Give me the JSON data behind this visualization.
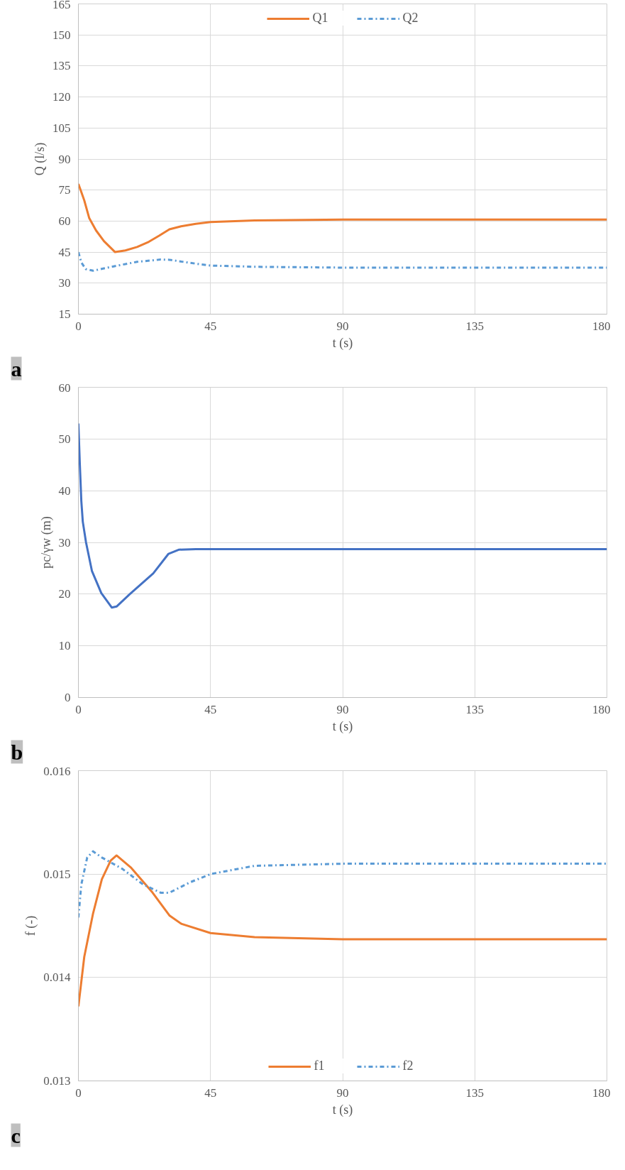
{
  "chart_data": [
    {
      "type": "line",
      "xlabel": "t (s)",
      "ylabel": "Q (l/s)",
      "xlim": [
        0,
        180
      ],
      "ylim": [
        15,
        165
      ],
      "xticks": [
        0,
        45,
        90,
        135,
        180
      ],
      "yticks": [
        15,
        30,
        45,
        60,
        75,
        90,
        105,
        120,
        135,
        150,
        165
      ],
      "grid": true,
      "legend": "top",
      "annotations": [
        "a"
      ],
      "series": [
        {
          "name": "Q1",
          "color": "#ed7d31",
          "line_style": "solid",
          "x": [
            0,
            1,
            2,
            3.7,
            6,
            8.7,
            12.5,
            16,
            20,
            24,
            27.6,
            31,
            35,
            40,
            45,
            60,
            90,
            135,
            180
          ],
          "values": [
            78,
            74,
            70,
            61.4,
            55.5,
            50.3,
            45,
            45.8,
            47.5,
            50,
            53,
            56,
            57.5,
            58.7,
            59.5,
            60.3,
            60.7,
            60.7,
            60.7
          ]
        },
        {
          "name": "Q2",
          "color": "#5b9bd5",
          "line_style": "dashdot",
          "x": [
            0,
            1,
            2.5,
            5,
            12,
            20,
            28,
            31,
            38,
            45,
            60,
            90,
            135,
            180
          ],
          "values": [
            45,
            40,
            36.8,
            36,
            38.1,
            40.3,
            41.4,
            41.3,
            39.8,
            38.5,
            37.9,
            37.5,
            37.5,
            37.5
          ]
        }
      ]
    },
    {
      "type": "line",
      "xlabel": "t (s)",
      "ylabel": "pc/γw (m)",
      "xlim": [
        0,
        180
      ],
      "ylim": [
        0,
        60
      ],
      "xticks": [
        0,
        45,
        90,
        135,
        180
      ],
      "yticks": [
        0,
        10,
        20,
        30,
        40,
        50,
        60
      ],
      "grid": true,
      "annotations": [
        "b"
      ],
      "series": [
        {
          "color": "#4472c4",
          "line_style": "solid",
          "x": [
            0,
            0.5,
            1,
            1.5,
            2.6,
            4.6,
            7.8,
            11.4,
            13,
            17.5,
            25.5,
            30.7,
            34.3,
            40,
            45,
            90,
            135,
            180
          ],
          "values": [
            53,
            45,
            38,
            34,
            30,
            24.5,
            20.2,
            17.4,
            17.6,
            20,
            24,
            27.8,
            28.6,
            28.7,
            28.7,
            28.7,
            28.7,
            28.7
          ]
        }
      ]
    },
    {
      "type": "line",
      "xlabel": "t (s)",
      "ylabel": "f (-)",
      "xlim": [
        0,
        180
      ],
      "ylim": [
        0.013,
        0.016
      ],
      "xticks": [
        0,
        45,
        90,
        135,
        180
      ],
      "yticks": [
        0.013,
        0.014,
        0.015,
        0.016
      ],
      "grid": true,
      "legend": "bottom",
      "annotations": [
        "c"
      ],
      "series": [
        {
          "name": "f1",
          "color": "#ed7d31",
          "line_style": "solid",
          "x": [
            0,
            2,
            5,
            8,
            11,
            13,
            18,
            25,
            31,
            35,
            45,
            60,
            90,
            135,
            180
          ],
          "values": [
            0.01372,
            0.0142,
            0.01462,
            0.01495,
            0.01513,
            0.01518,
            0.01506,
            0.01483,
            0.0146,
            0.01452,
            0.01443,
            0.01439,
            0.01437,
            0.01437,
            0.01437
          ]
        },
        {
          "name": "f2",
          "color": "#5b9bd5",
          "line_style": "dashdot",
          "x": [
            0,
            1,
            3,
            5,
            8,
            15,
            22,
            28,
            31,
            38,
            45,
            60,
            90,
            135,
            180
          ],
          "values": [
            0.01458,
            0.0149,
            0.01516,
            0.01522,
            0.01516,
            0.01505,
            0.0149,
            0.01482,
            0.01482,
            0.01492,
            0.015,
            0.01508,
            0.0151,
            0.0151,
            0.0151
          ]
        }
      ]
    }
  ]
}
